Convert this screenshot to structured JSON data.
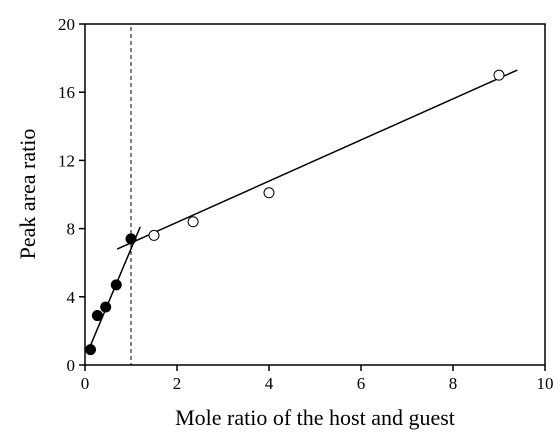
{
  "chart_data": {
    "type": "scatter",
    "xlabel": "Mole ratio of the host and guest",
    "ylabel": "Peak area ratio",
    "xlim": [
      0,
      10
    ],
    "ylim": [
      0,
      20
    ],
    "xticks": [
      0,
      2,
      4,
      6,
      8,
      10
    ],
    "yticks": [
      0,
      4,
      8,
      12,
      16,
      20
    ],
    "grid": false,
    "series": [
      {
        "marker": "filled-circle",
        "points": [
          {
            "x": 0.12,
            "y": 0.9
          },
          {
            "x": 0.27,
            "y": 2.9
          },
          {
            "x": 0.45,
            "y": 3.4
          },
          {
            "x": 0.68,
            "y": 4.7
          },
          {
            "x": 1.0,
            "y": 7.4
          }
        ]
      },
      {
        "marker": "open-circle",
        "points": [
          {
            "x": 1.5,
            "y": 7.6
          },
          {
            "x": 2.35,
            "y": 8.4
          },
          {
            "x": 4.0,
            "y": 10.1
          },
          {
            "x": 9.0,
            "y": 17.0
          }
        ]
      }
    ],
    "fit_lines": [
      {
        "from": {
          "x": 0.05,
          "y": 0.7
        },
        "to": {
          "x": 1.2,
          "y": 8.1
        }
      },
      {
        "from": {
          "x": 0.7,
          "y": 6.8
        },
        "to": {
          "x": 9.4,
          "y": 17.3
        }
      }
    ],
    "reference_line": {
      "x": 1.0,
      "style": "dashed"
    }
  }
}
